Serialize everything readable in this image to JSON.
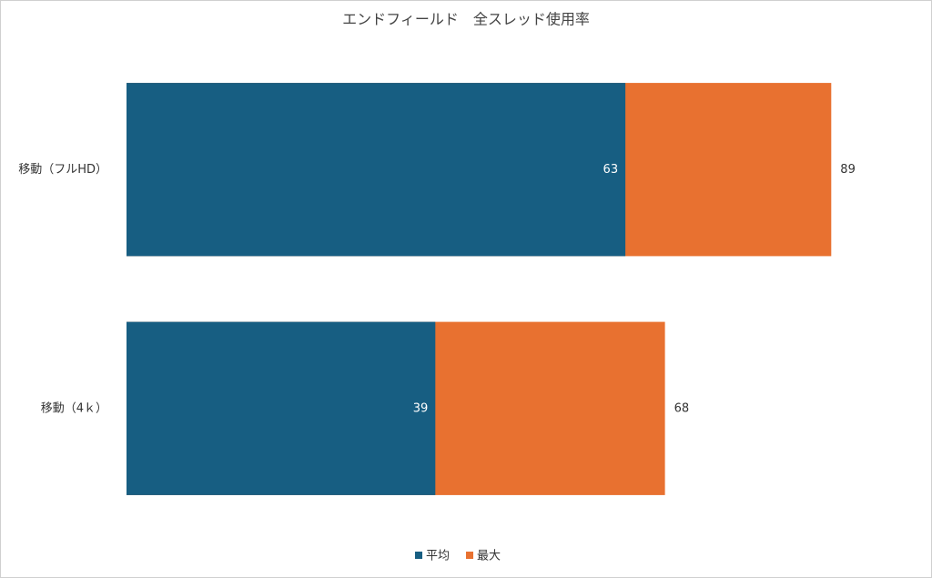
{
  "chart_data": {
    "type": "bar",
    "orientation": "horizontal",
    "title": "エンドフィールド　全スレッド使用率",
    "categories": [
      "移動（フルHD）",
      "移動（4ｋ）"
    ],
    "series": [
      {
        "name": "平均",
        "color": "#175e82",
        "values": [
          63,
          39
        ]
      },
      {
        "name": "最大",
        "color": "#e87130",
        "values": [
          89,
          68
        ]
      }
    ],
    "xlim": [
      0,
      100
    ]
  }
}
